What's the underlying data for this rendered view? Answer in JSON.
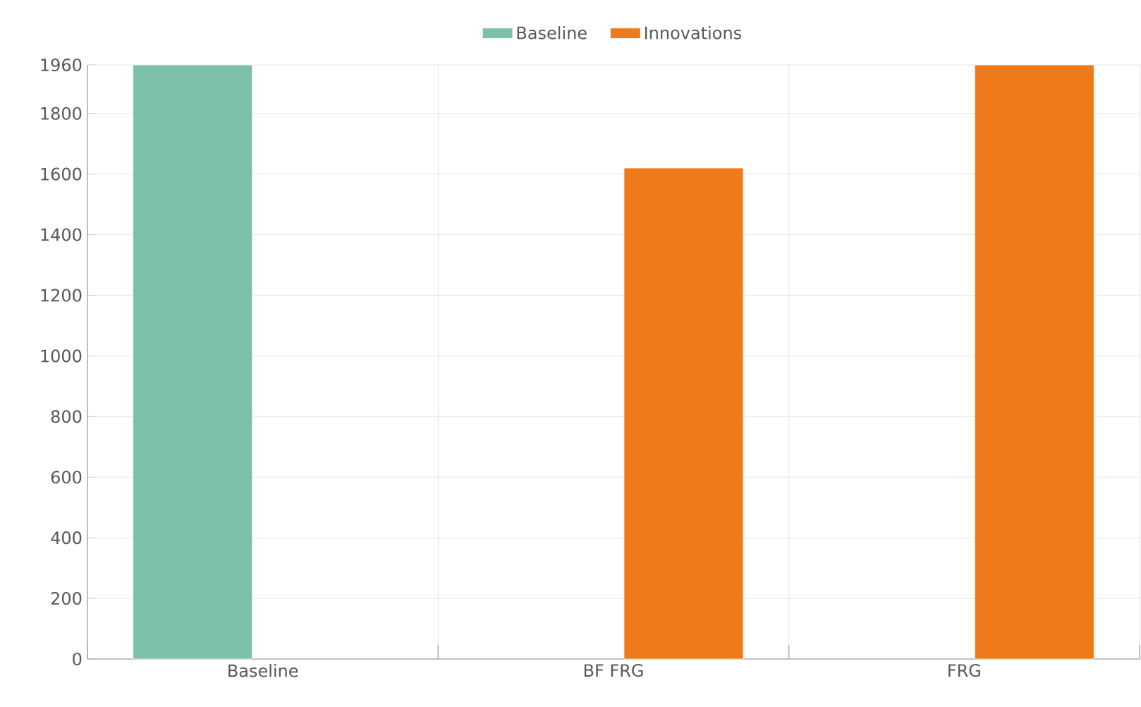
{
  "chart_data": {
    "type": "bar",
    "categories": [
      "Baseline",
      "BF FRG",
      "FRG"
    ],
    "series": [
      {
        "name": "Baseline",
        "color": "#7cc0a8",
        "values": [
          1960,
          null,
          null
        ]
      },
      {
        "name": "Innovations",
        "color": "#ee7a19",
        "values": [
          null,
          1620,
          1960
        ]
      }
    ],
    "ylim": [
      0,
      1960
    ],
    "yticks": [
      0,
      200,
      400,
      600,
      800,
      1000,
      1200,
      1400,
      1600,
      1800,
      1960
    ],
    "grid": true,
    "legend": "top"
  }
}
